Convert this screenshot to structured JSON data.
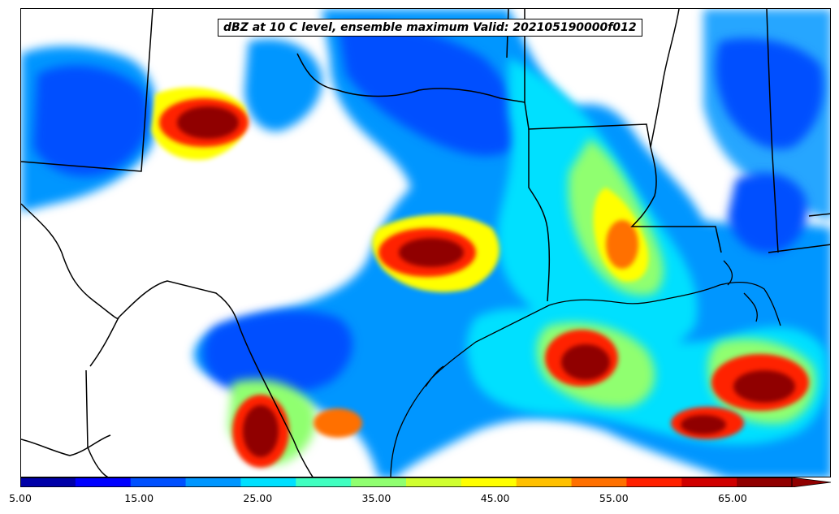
{
  "title": "dBZ at 10 C level, ensemble maximum Valid: 202105190000f012",
  "colorbar": {
    "min": 5.0,
    "max": 70.0,
    "step": 5.0,
    "extend": "max",
    "colors": [
      "#0000a8",
      "#0000ff",
      "#0050ff",
      "#0096ff",
      "#00e0ff",
      "#40ffc0",
      "#90ff70",
      "#d0ff30",
      "#ffff00",
      "#ffc000",
      "#ff7000",
      "#ff2000",
      "#d00000",
      "#900000"
    ],
    "tick_values": [
      5.0,
      15.0,
      25.0,
      35.0,
      45.0,
      55.0,
      65.0
    ],
    "tick_labels": [
      "5.00",
      "15.00",
      "25.00",
      "35.00",
      "45.00",
      "55.00",
      "65.00"
    ]
  }
}
